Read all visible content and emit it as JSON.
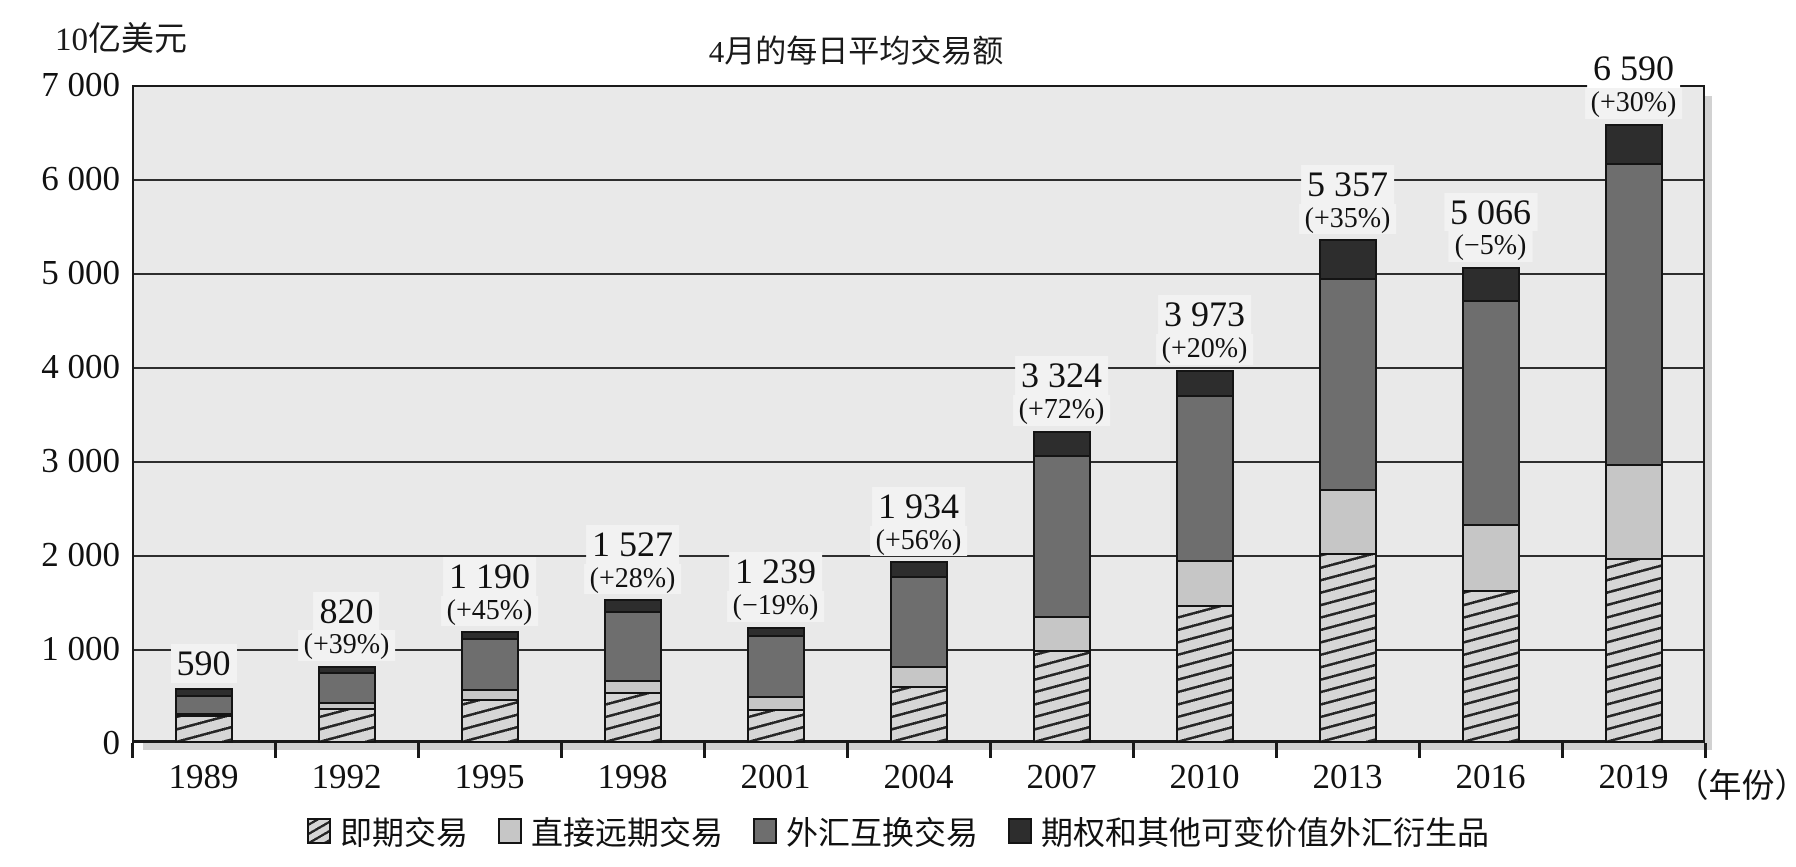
{
  "chart_data": {
    "type": "bar",
    "stacked": true,
    "title": "4月的每日平均交易额",
    "unit_label": "10亿美元",
    "x_axis_suffix": "（年份）",
    "categories": [
      "1989",
      "1992",
      "1995",
      "1998",
      "2001",
      "2004",
      "2007",
      "2010",
      "2013",
      "2016",
      "2019"
    ],
    "series": [
      {
        "name": "即期交易",
        "key": "spot",
        "swatch": "hatch",
        "values": [
          317,
          394,
          494,
          568,
          386,
          631,
          1005,
          1489,
          2047,
          1652,
          1987
        ]
      },
      {
        "name": "直接远期交易",
        "key": "outright-forwards",
        "swatch": "#c6c6c6",
        "values": [
          27,
          58,
          97,
          128,
          130,
          209,
          362,
          475,
          679,
          700,
          999
        ]
      },
      {
        "name": "外汇互换交易",
        "key": "fx-swaps",
        "swatch": "#6e6e6e",
        "values": [
          190,
          324,
          546,
          734,
          656,
          954,
          1714,
          1759,
          2240,
          2378,
          3202
        ]
      },
      {
        "name": "期权和其他可变价值外汇衍生品",
        "key": "options-other",
        "swatch": "#2d2d2d",
        "values": [
          56,
          44,
          53,
          97,
          67,
          140,
          243,
          250,
          391,
          336,
          402
        ]
      }
    ],
    "totals": [
      590,
      820,
      1190,
      1527,
      1239,
      1934,
      3324,
      3973,
      5357,
      5066,
      6590
    ],
    "totals_display": [
      "590",
      "820",
      "1 190",
      "1 527",
      "1 239",
      "1 934",
      "3 324",
      "3 973",
      "5 357",
      "5 066",
      "6 590"
    ],
    "change_display": [
      "",
      "(+39%)",
      "(+45%)",
      "(+28%)",
      "(−19%)",
      "(+56%)",
      "(+72%)",
      "(+20%)",
      "(+35%)",
      "(−5%)",
      "(+30%)"
    ],
    "y_ticks": [
      "0",
      "1 000",
      "2 000",
      "3 000",
      "4 000",
      "5 000",
      "6 000",
      "7 000"
    ],
    "ylim": [
      0,
      7000
    ],
    "grid": true,
    "legend_position": "bottom",
    "colors": {
      "plot_background": "#e9e9e9",
      "hatch_fill": "#d6d6d6",
      "outright_forwards": "#c6c6c6",
      "fx_swaps": "#6e6e6e",
      "options_other": "#2d2d2d",
      "border": "#141414"
    }
  }
}
